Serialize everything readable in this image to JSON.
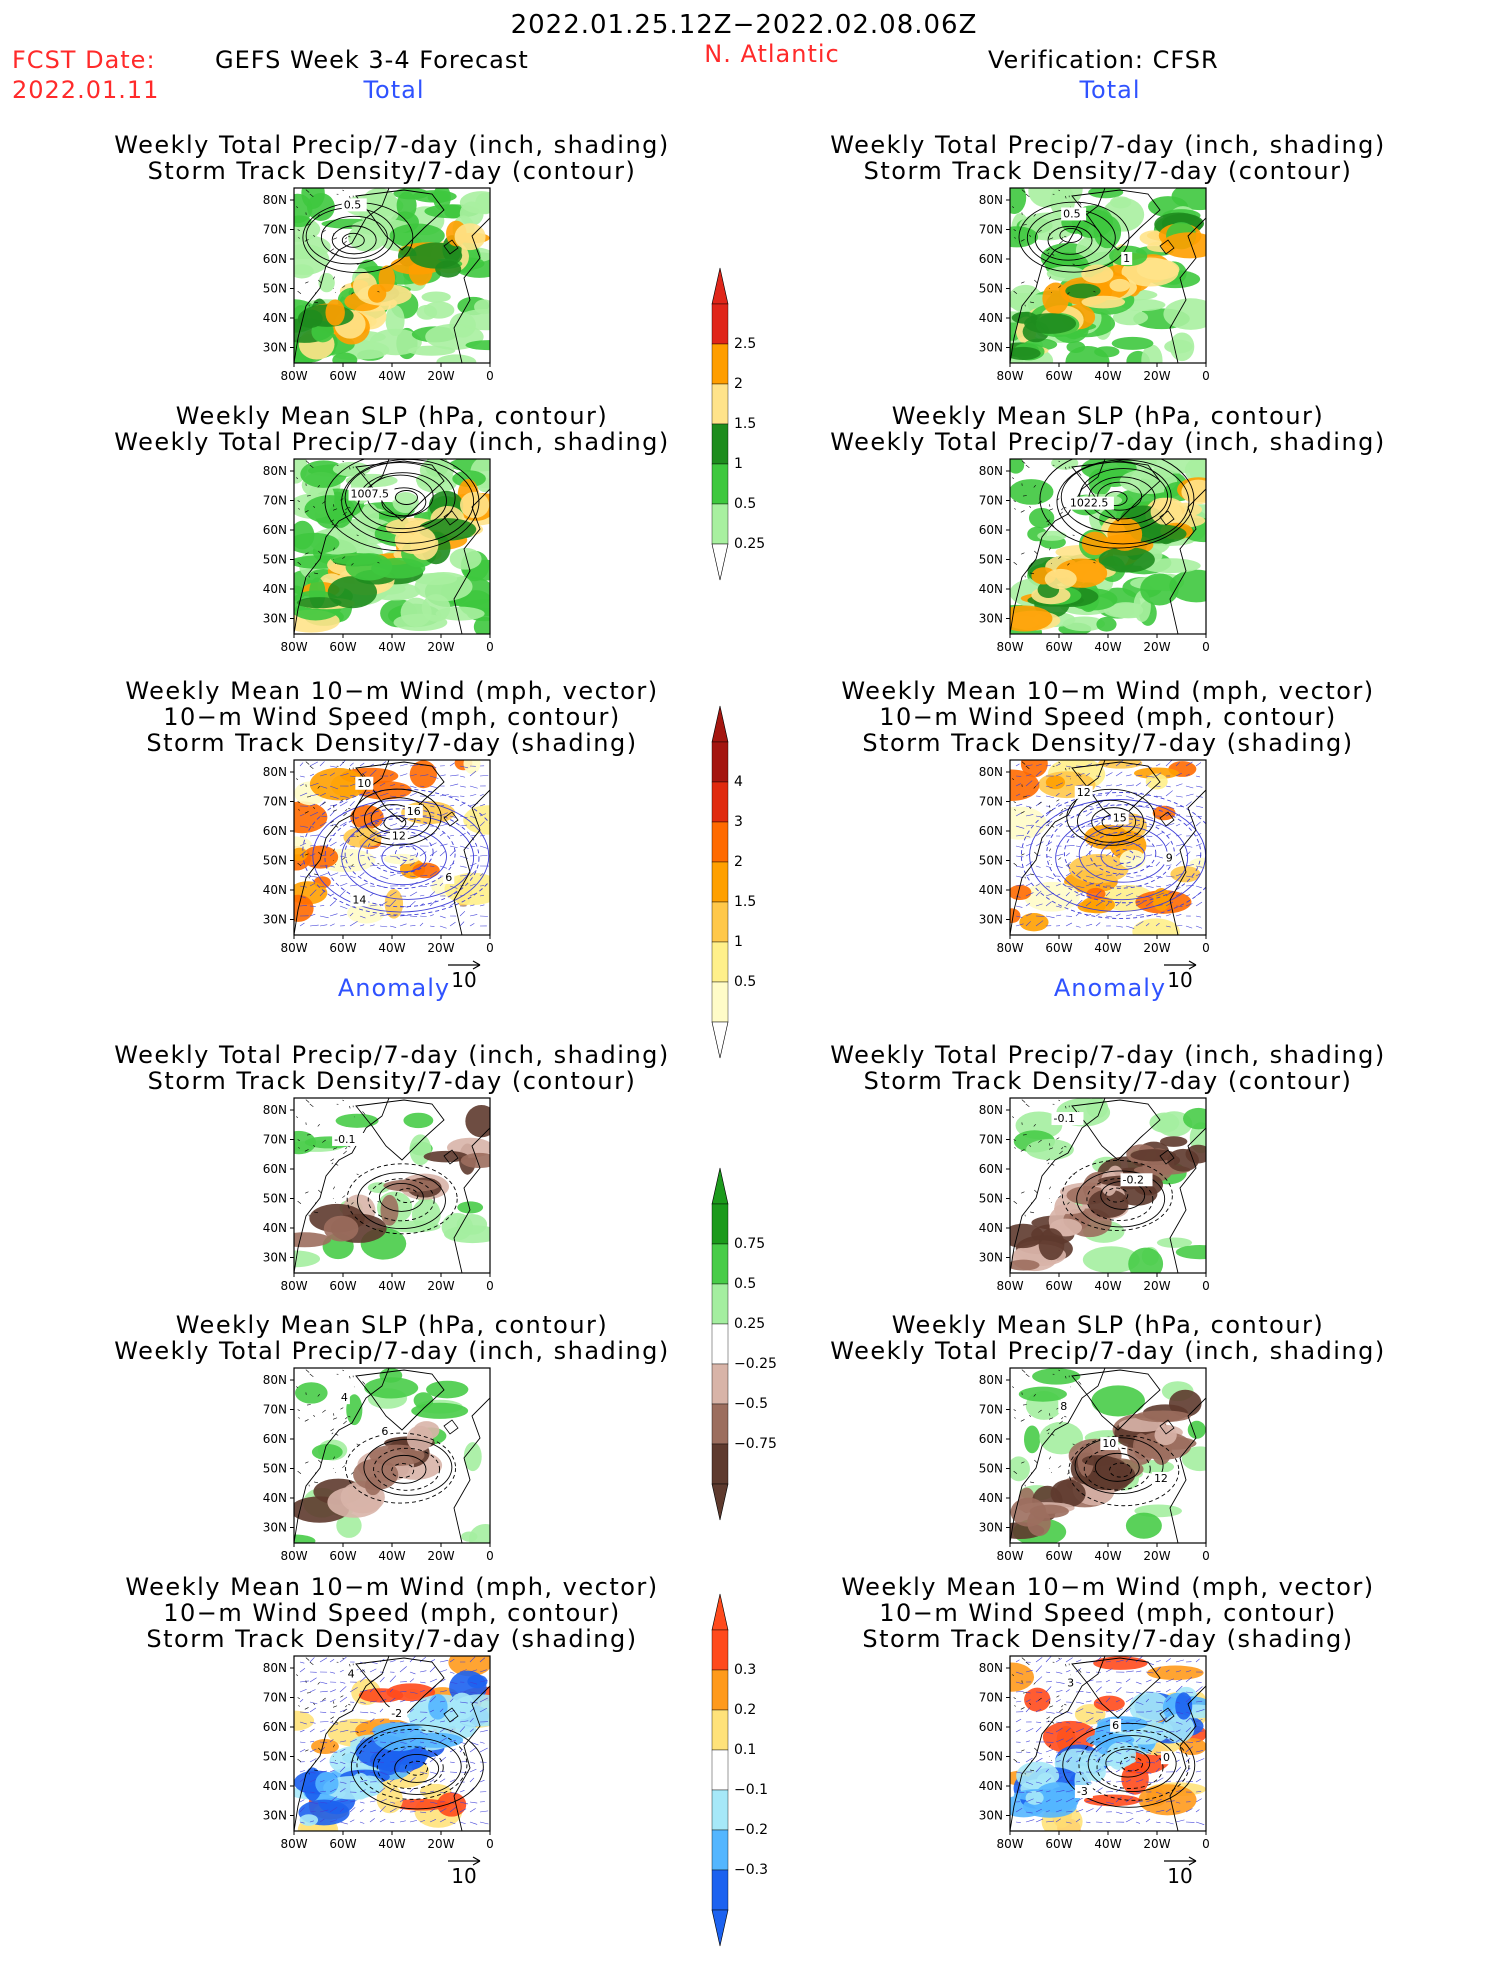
{
  "header": {
    "date_range": "2022.01.25.12Z−2022.02.08.06Z",
    "fcst_label": "FCST Date:",
    "fcst_date": "2022.01.11",
    "forecast_title": "GEFS Week 3-4 Forecast",
    "region": "N. Atlantic",
    "verification": "Verification: CFSR",
    "total_left": "Total",
    "total_right": "Total",
    "anomaly_left": "Anomaly",
    "anomaly_right": "Anomaly"
  },
  "panel_titles": {
    "precip_track": [
      "Weekly Total Precip/7-day (inch, shading)",
      "Storm Track Density/7-day (contour)"
    ],
    "slp_precip": [
      "Weekly Mean SLP (hPa, contour)",
      "Weekly Total Precip/7-day (inch, shading)"
    ],
    "wind_track": [
      "Weekly Mean 10−m Wind (mph, vector)",
      "10−m Wind Speed (mph, contour)",
      "Storm Track Density/7-day (shading)"
    ]
  },
  "axes": {
    "lat_ticks": [
      "80N",
      "70N",
      "60N",
      "50N",
      "40N",
      "30N"
    ],
    "lon_ticks": [
      "80W",
      "60W",
      "40W",
      "20W",
      "0"
    ]
  },
  "vector_ref": "10",
  "contour_labels": {
    "p1": [
      "0.5"
    ],
    "p2": [
      "0.5",
      "1"
    ],
    "p3": [
      "1007.5"
    ],
    "p4": [
      "1022.5"
    ],
    "p5": [
      "10",
      "12",
      "6",
      "14",
      "16"
    ],
    "p6": [
      "12",
      "15",
      "9"
    ],
    "p7": [
      "-0.1"
    ],
    "p8": [
      "-0.1",
      "-0.2"
    ],
    "p9": [
      "4",
      "6"
    ],
    "p10": [
      "8",
      "10",
      "12"
    ],
    "p11": [
      "4",
      "-2"
    ],
    "p12": [
      "3",
      "6",
      "0",
      "-3"
    ]
  },
  "colorbars": {
    "precip": {
      "labels": [
        "2.5",
        "2",
        "1.5",
        "1",
        "0.5",
        "0.25"
      ],
      "colors": [
        "#e0261a",
        "#ff9e00",
        "#ffe38a",
        "#1e8c1e",
        "#3ec83e",
        "#a8f0a0"
      ]
    },
    "track": {
      "labels": [
        "4",
        "3",
        "2",
        "1.5",
        "1",
        "0.5"
      ],
      "colors": [
        "#a41610",
        "#e02a0e",
        "#ff6a00",
        "#ffa000",
        "#ffc84a",
        "#fff08a",
        "#fffcc8"
      ]
    },
    "precip_anom": {
      "labels": [
        "0.75",
        "0.5",
        "0.25",
        "−0.25",
        "−0.5",
        "−0.75"
      ],
      "colors": [
        "#1c9a1c",
        "#48cc48",
        "#a4eea0",
        "#ffffff",
        "#d8b4a8",
        "#9c6e5e",
        "#5e3a2e"
      ]
    },
    "track_anom": {
      "labels": [
        "0.3",
        "0.2",
        "0.1",
        "−0.1",
        "−0.2",
        "−0.3"
      ],
      "colors": [
        "#ff4a1c",
        "#ff9a1c",
        "#ffe27a",
        "#ffffff",
        "#a6e8f8",
        "#54b6ff",
        "#1c62f0"
      ]
    }
  },
  "chart_data": [
    {
      "type": "heatmap",
      "panel": "GEFS total precip & storm track density",
      "title": "Weekly Total Precip/7-day (inch, shading)",
      "subtitle": "Storm Track Density/7-day (contour)",
      "xlim": [
        "80W",
        "0"
      ],
      "ylim": [
        "25N",
        "85N"
      ],
      "contour_labels": [
        "0.5"
      ]
    },
    {
      "type": "heatmap",
      "panel": "CFSR total precip & storm track density",
      "title": "Weekly Total Precip/7-day (inch, shading)",
      "subtitle": "Storm Track Density/7-day (contour)",
      "xlim": [
        "80W",
        "0"
      ],
      "ylim": [
        "25N",
        "85N"
      ],
      "contour_labels": [
        "0.5",
        "1"
      ]
    },
    {
      "type": "heatmap",
      "panel": "GEFS mean SLP & precip",
      "title": "Weekly Mean SLP (hPa, contour)",
      "subtitle": "Weekly Total Precip/7-day (inch, shading)",
      "contour_labels": [
        "1007.5"
      ]
    },
    {
      "type": "heatmap",
      "panel": "CFSR mean SLP & precip",
      "title": "Weekly Mean SLP (hPa, contour)",
      "subtitle": "Weekly Total Precip/7-day (inch, shading)",
      "contour_labels": [
        "1022.5"
      ]
    },
    {
      "type": "heatmap",
      "panel": "GEFS wind & storm track",
      "contour_labels": [
        "10",
        "12",
        "6",
        "14",
        "16"
      ]
    },
    {
      "type": "heatmap",
      "panel": "CFSR wind & storm track",
      "contour_labels": [
        "12",
        "15",
        "9"
      ]
    },
    {
      "type": "heatmap",
      "panel": "GEFS precip anomaly",
      "contour_labels": [
        "-0.1"
      ]
    },
    {
      "type": "heatmap",
      "panel": "CFSR precip anomaly",
      "contour_labels": [
        "-0.1",
        "-0.2"
      ]
    },
    {
      "type": "heatmap",
      "panel": "GEFS SLP anomaly",
      "contour_labels": [
        "4",
        "6"
      ]
    },
    {
      "type": "heatmap",
      "panel": "CFSR SLP anomaly",
      "contour_labels": [
        "8",
        "10",
        "12"
      ]
    },
    {
      "type": "heatmap",
      "panel": "GEFS wind & storm track anomaly",
      "contour_labels": [
        "4",
        "-2"
      ]
    },
    {
      "type": "heatmap",
      "panel": "CFSR wind & storm track anomaly",
      "contour_labels": [
        "3",
        "6",
        "0",
        "-3"
      ]
    }
  ]
}
